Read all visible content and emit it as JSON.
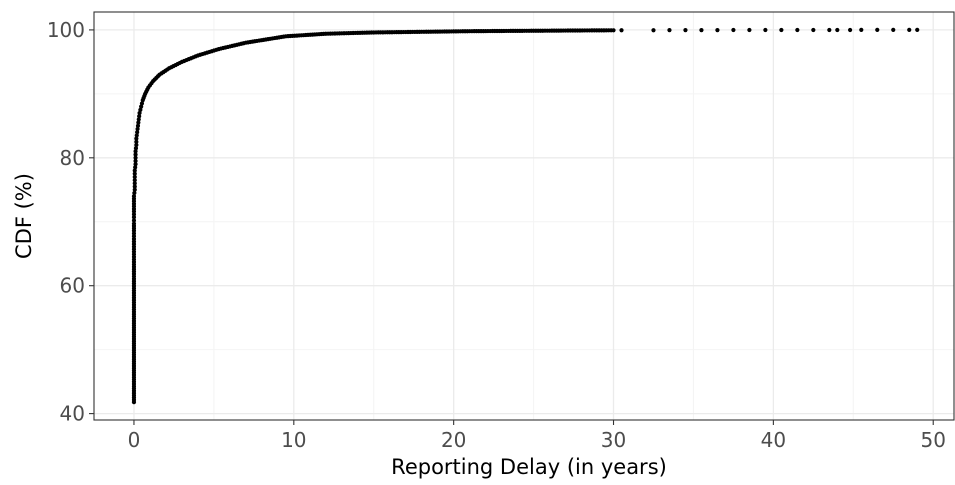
{
  "chart_data": {
    "type": "scatter",
    "title": "",
    "xlabel": "Reporting Delay (in years)",
    "ylabel": "CDF (%)",
    "xlim": [
      -2.5,
      51.3
    ],
    "ylim": [
      39.0,
      102.8
    ],
    "x_ticks": [
      0,
      10,
      20,
      30,
      40,
      50
    ],
    "y_ticks": [
      40,
      60,
      80,
      100
    ],
    "x_tick_labels": [
      "0",
      "10",
      "20",
      "30",
      "40",
      "50"
    ],
    "y_tick_labels": [
      "40",
      "60",
      "80",
      "100"
    ],
    "grid": true,
    "legend": "none",
    "colors": {
      "points": "#000000",
      "grid_major": "#ebebeb",
      "grid_minor": "#f4f4f4",
      "panel_border": "#333333",
      "tick_label": "#4d4d4d"
    },
    "series": [
      {
        "points": [
          [
            0.0,
            41.8
          ],
          [
            0.0,
            55.9
          ],
          [
            0.0,
            60.7
          ],
          [
            0.0,
            63.7
          ],
          [
            0.0,
            65.7
          ],
          [
            0.0,
            67.3
          ],
          [
            0.0,
            68.6
          ],
          [
            0.0,
            69.7
          ],
          [
            0.0,
            70.7
          ],
          [
            0.0,
            71.6
          ],
          [
            0.0,
            72.4
          ],
          [
            0.0,
            73.2
          ],
          [
            0.0,
            74.0
          ],
          [
            0.05,
            75.0
          ],
          [
            0.05,
            76.0
          ],
          [
            0.05,
            77.0
          ],
          [
            0.05,
            78.0
          ],
          [
            0.1,
            79.0
          ],
          [
            0.1,
            80.0
          ],
          [
            0.1,
            81.0
          ],
          [
            0.15,
            82.0
          ],
          [
            0.15,
            83.0
          ],
          [
            0.2,
            84.0
          ],
          [
            0.25,
            85.0
          ],
          [
            0.3,
            86.0
          ],
          [
            0.35,
            87.0
          ],
          [
            0.45,
            88.0
          ],
          [
            0.55,
            89.0
          ],
          [
            0.7,
            90.0
          ],
          [
            0.9,
            91.0
          ],
          [
            1.2,
            92.0
          ],
          [
            1.6,
            93.0
          ],
          [
            2.2,
            94.0
          ],
          [
            3.0,
            95.0
          ],
          [
            4.0,
            96.0
          ],
          [
            5.3,
            97.0
          ],
          [
            7.0,
            98.0
          ],
          [
            9.5,
            99.0
          ],
          [
            12.0,
            99.4
          ],
          [
            15.0,
            99.6
          ],
          [
            18.0,
            99.7
          ],
          [
            21.0,
            99.8
          ],
          [
            24.0,
            99.85
          ],
          [
            26.0,
            99.88
          ],
          [
            27.0,
            99.9
          ],
          [
            28.5,
            99.92
          ],
          [
            30.0,
            99.94
          ],
          [
            30.5,
            99.95
          ],
          [
            32.5,
            99.95
          ],
          [
            33.5,
            99.96
          ],
          [
            34.5,
            99.96
          ],
          [
            35.5,
            99.97
          ],
          [
            36.5,
            99.97
          ],
          [
            37.5,
            99.98
          ],
          [
            38.5,
            99.98
          ],
          [
            39.5,
            99.98
          ],
          [
            40.5,
            99.99
          ],
          [
            41.5,
            99.99
          ],
          [
            42.5,
            99.99
          ],
          [
            43.5,
            99.99
          ],
          [
            44.0,
            99.99
          ],
          [
            44.8,
            99.99
          ],
          [
            45.5,
            100.0
          ],
          [
            46.5,
            100.0
          ],
          [
            47.5,
            100.0
          ],
          [
            48.5,
            100.0
          ],
          [
            49.0,
            100.0
          ]
        ]
      }
    ]
  }
}
